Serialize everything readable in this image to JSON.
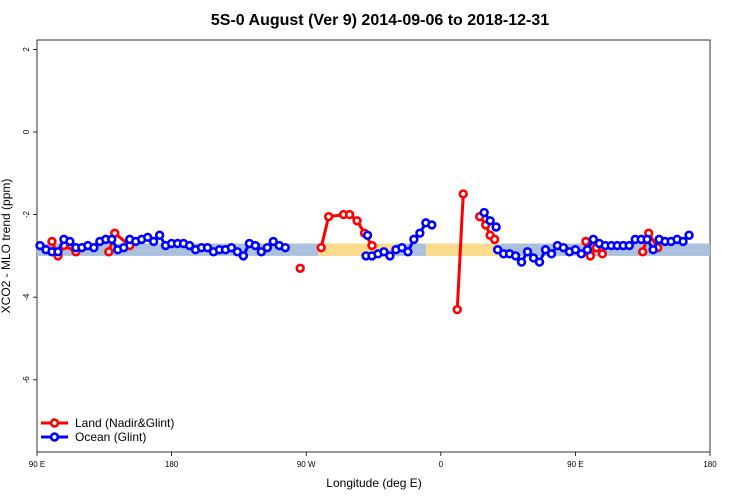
{
  "chart_data": {
    "type": "line",
    "title": "5S-0 August (Ver 9)   2014-09-06 to 2018-12-31",
    "xlabel": "Longitude (deg E)",
    "ylabel": "XCO2 - MLO trend (ppm)",
    "xlim": [
      90,
      540
    ],
    "ylim": [
      -7.5,
      2.2
    ],
    "x_ticks": [
      {
        "value": 90,
        "label": "90 E"
      },
      {
        "value": 180,
        "label": "180"
      },
      {
        "value": 270,
        "label": "90 W"
      },
      {
        "value": 360,
        "label": "0"
      },
      {
        "value": 450,
        "label": "90 E"
      },
      {
        "value": 540,
        "label": "180"
      }
    ],
    "y_ticks": [
      {
        "value": 2,
        "label": "2"
      },
      {
        "value": 0,
        "label": "0"
      },
      {
        "value": -2,
        "label": "-2"
      },
      {
        "value": -4,
        "label": "-4"
      },
      {
        "value": -6,
        "label": "-6"
      }
    ],
    "colors": {
      "land": "#ff0000",
      "ocean": "#0000ff",
      "band_ocean": "#aac0dd",
      "band_land": "#fadc8c"
    },
    "bands": [
      {
        "x0": 90,
        "x1": 540,
        "kind": "ocean"
      },
      {
        "x0": 278,
        "x1": 330,
        "kind": "land"
      },
      {
        "x0": 350,
        "x1": 400,
        "kind": "land"
      }
    ],
    "band_range": [
      -3.0,
      -2.7
    ],
    "legend": [
      {
        "label": "Land (Nadir&Glint)",
        "color": "#ff0000"
      },
      {
        "label": "Ocean (Glint)",
        "color": "#0000ff"
      }
    ],
    "series": [
      {
        "name": "Land (Nadir&Glint)",
        "segments": [
          [
            [
              100,
              -2.65
            ],
            [
              104,
              -3.0
            ],
            [
              108,
              -2.75
            ],
            [
              116,
              -2.9
            ]
          ],
          [
            [
              138,
              -2.9
            ],
            [
              142,
              -2.45
            ],
            [
              152,
              -2.75
            ]
          ],
          [
            [
              266,
              -3.3
            ]
          ],
          [
            [
              280,
              -2.8
            ],
            [
              285,
              -2.05
            ],
            [
              295,
              -2.0
            ],
            [
              299,
              -2.0
            ],
            [
              304,
              -2.15
            ],
            [
              309,
              -2.45
            ],
            [
              314,
              -2.75
            ]
          ],
          [
            [
              371,
              -4.3
            ],
            [
              375,
              -1.5
            ]
          ],
          [
            [
              386,
              -2.05
            ],
            [
              390,
              -2.25
            ],
            [
              393,
              -2.5
            ],
            [
              396,
              -2.6
            ]
          ],
          [
            [
              457,
              -2.65
            ],
            [
              460,
              -3.0
            ],
            [
              464,
              -2.8
            ],
            [
              468,
              -2.95
            ]
          ],
          [
            [
              495,
              -2.9
            ],
            [
              499,
              -2.45
            ],
            [
              505,
              -2.8
            ]
          ]
        ]
      },
      {
        "name": "Ocean (Glint)",
        "segments": [
          [
            [
              92,
              -2.75
            ],
            [
              96,
              -2.85
            ],
            [
              100,
              -2.9
            ],
            [
              104,
              -2.9
            ],
            [
              108,
              -2.6
            ],
            [
              112,
              -2.65
            ],
            [
              116,
              -2.8
            ],
            [
              120,
              -2.8
            ],
            [
              124,
              -2.75
            ],
            [
              128,
              -2.8
            ],
            [
              132,
              -2.65
            ],
            [
              136,
              -2.6
            ],
            [
              140,
              -2.6
            ],
            [
              144,
              -2.85
            ],
            [
              148,
              -2.8
            ],
            [
              152,
              -2.6
            ],
            [
              156,
              -2.65
            ],
            [
              160,
              -2.6
            ],
            [
              164,
              -2.55
            ],
            [
              168,
              -2.65
            ],
            [
              172,
              -2.5
            ],
            [
              176,
              -2.75
            ],
            [
              180,
              -2.7
            ],
            [
              184,
              -2.7
            ],
            [
              188,
              -2.7
            ],
            [
              192,
              -2.75
            ],
            [
              196,
              -2.85
            ],
            [
              200,
              -2.8
            ],
            [
              204,
              -2.8
            ],
            [
              208,
              -2.9
            ],
            [
              212,
              -2.85
            ],
            [
              216,
              -2.85
            ],
            [
              220,
              -2.8
            ],
            [
              224,
              -2.9
            ],
            [
              228,
              -3.0
            ],
            [
              232,
              -2.7
            ],
            [
              236,
              -2.75
            ],
            [
              240,
              -2.9
            ],
            [
              244,
              -2.8
            ],
            [
              248,
              -2.65
            ],
            [
              252,
              -2.75
            ],
            [
              256,
              -2.8
            ]
          ],
          [
            [
              311,
              -2.5
            ]
          ],
          [
            [
              310,
              -3.0
            ],
            [
              314,
              -3.0
            ],
            [
              318,
              -2.95
            ],
            [
              322,
              -2.9
            ],
            [
              326,
              -3.0
            ],
            [
              330,
              -2.85
            ],
            [
              334,
              -2.8
            ],
            [
              338,
              -2.9
            ],
            [
              342,
              -2.6
            ],
            [
              346,
              -2.45
            ],
            [
              350,
              -2.2
            ],
            [
              354,
              -2.25
            ]
          ],
          [
            [
              389,
              -1.95
            ],
            [
              393,
              -2.15
            ],
            [
              397,
              -2.3
            ]
          ],
          [
            [
              398,
              -2.85
            ],
            [
              402,
              -2.95
            ],
            [
              406,
              -2.95
            ],
            [
              410,
              -3.0
            ],
            [
              414,
              -3.15
            ],
            [
              418,
              -2.9
            ],
            [
              422,
              -3.05
            ],
            [
              426,
              -3.15
            ],
            [
              430,
              -2.85
            ],
            [
              434,
              -2.95
            ],
            [
              438,
              -2.75
            ],
            [
              442,
              -2.8
            ],
            [
              446,
              -2.9
            ],
            [
              450,
              -2.85
            ],
            [
              454,
              -2.95
            ],
            [
              458,
              -2.85
            ],
            [
              462,
              -2.6
            ],
            [
              466,
              -2.7
            ],
            [
              470,
              -2.75
            ],
            [
              474,
              -2.75
            ],
            [
              478,
              -2.75
            ],
            [
              482,
              -2.75
            ],
            [
              486,
              -2.75
            ],
            [
              490,
              -2.6
            ],
            [
              494,
              -2.6
            ],
            [
              498,
              -2.6
            ],
            [
              502,
              -2.85
            ],
            [
              506,
              -2.6
            ],
            [
              510,
              -2.65
            ],
            [
              514,
              -2.65
            ],
            [
              518,
              -2.6
            ],
            [
              522,
              -2.65
            ],
            [
              526,
              -2.5
            ]
          ]
        ]
      }
    ]
  }
}
